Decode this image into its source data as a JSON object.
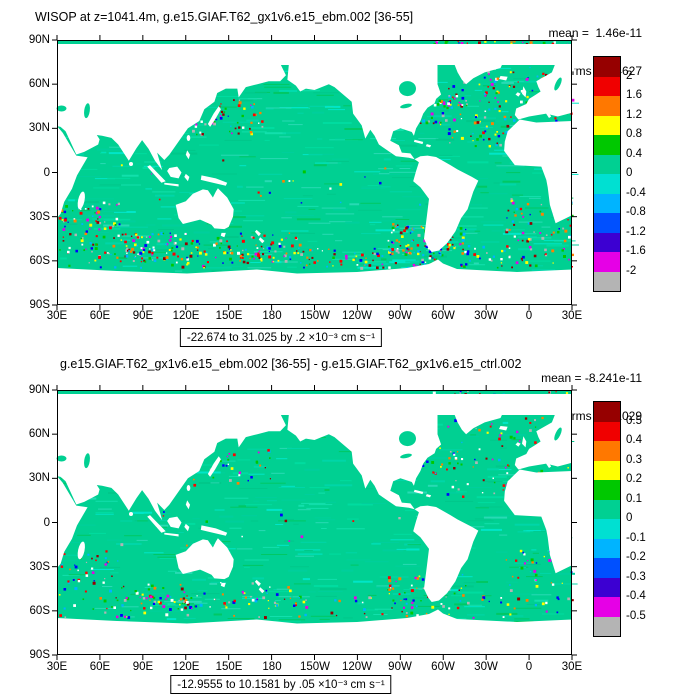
{
  "map": {
    "ocean_color": "#00d092",
    "land_color": "#ffffff",
    "frame_color": "#000000"
  },
  "chart_data": [
    {
      "type": "heatmap",
      "panel": "top",
      "title": "WISOP at z=1041.4m, g.e15.GIAF.T62_gx1v6.e15_ebm.002 [36-55]",
      "stats": {
        "mean_line": "mean =  1.46e-11",
        "rms_line": "rms = 0.4627"
      },
      "caption": "-22.674 to 31.025 by .2 ×10⁻³ cm s⁻¹",
      "data_min": -22.674,
      "data_max": 31.025,
      "contour_interval": 0.2,
      "units": "×10⁻³ cm s⁻¹",
      "x_ticks": [
        "30E",
        "60E",
        "90E",
        "120E",
        "150E",
        "180",
        "150W",
        "120W",
        "90W",
        "60W",
        "30W",
        "0",
        "30E"
      ],
      "y_ticks": [
        "90N",
        "60N",
        "30N",
        "0",
        "30S",
        "60S",
        "90S"
      ],
      "colorbar": {
        "labels": [
          "2",
          "1.6",
          "1.2",
          "0.8",
          "0.4",
          "0",
          "-0.4",
          "-0.8",
          "-1.2",
          "-1.6",
          "-2"
        ],
        "colors": [
          "#960000",
          "#f00000",
          "#ff7800",
          "#ffff00",
          "#00c800",
          "#00d092",
          "#00e0d2",
          "#00b4ff",
          "#0050ff",
          "#3c00d2",
          "#e600e6",
          "#b4b4b4"
        ]
      }
    },
    {
      "type": "heatmap",
      "panel": "bottom",
      "title": "g.e15.GIAF.T62_gx1v6.e15_ebm.002 [36-55] - g.e15.GIAF.T62_gx1v6.e15_ctrl.002",
      "stats": {
        "mean_line": "mean = -8.241e-11",
        "rms_line": "rms = 0.1029"
      },
      "caption": "-12.9555 to 10.1581 by .05 ×10⁻³ cm s⁻¹",
      "data_min": -12.9555,
      "data_max": 10.1581,
      "contour_interval": 0.05,
      "units": "×10⁻³ cm s⁻¹",
      "x_ticks": [
        "30E",
        "60E",
        "90E",
        "120E",
        "150E",
        "180",
        "150W",
        "120W",
        "90W",
        "60W",
        "30W",
        "0",
        "30E"
      ],
      "y_ticks": [
        "90N",
        "60N",
        "30N",
        "0",
        "30S",
        "60S",
        "90S"
      ],
      "colorbar": {
        "labels": [
          "0.5",
          "0.4",
          "0.3",
          "0.2",
          "0.1",
          "0",
          "-0.1",
          "-0.2",
          "-0.3",
          "-0.4",
          "-0.5"
        ],
        "colors": [
          "#960000",
          "#f00000",
          "#ff7800",
          "#ffff00",
          "#00c800",
          "#00d092",
          "#00e0d2",
          "#00b4ff",
          "#0050ff",
          "#3c00d2",
          "#e600e6",
          "#b4b4b4"
        ]
      }
    }
  ]
}
